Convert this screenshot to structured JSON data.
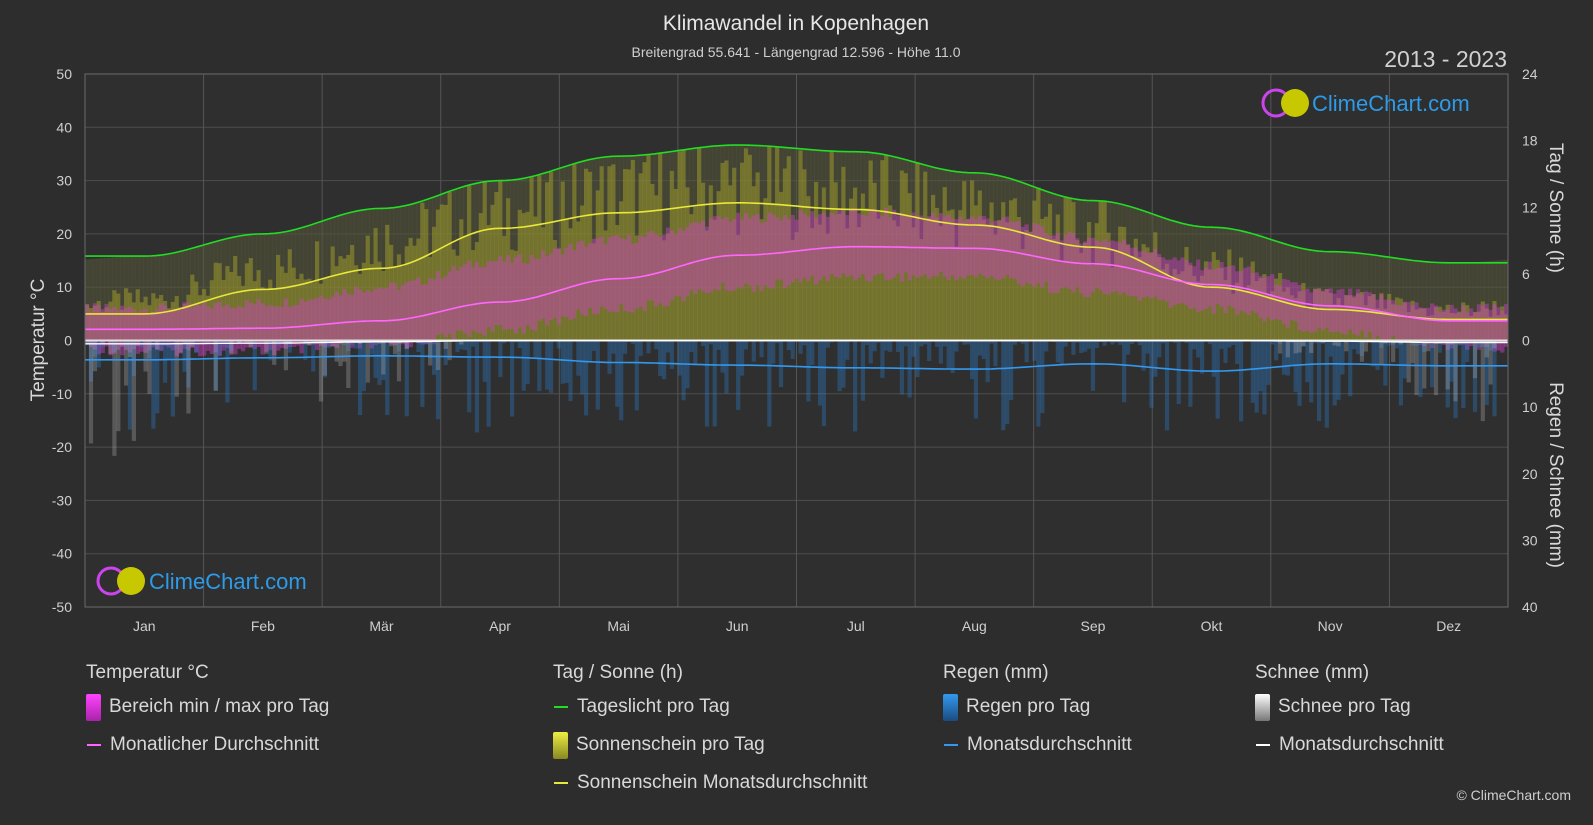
{
  "header": {
    "title": "Klimawandel in Kopenhagen",
    "subtitle": "Breitengrad 55.641 - Längengrad 12.596 - Höhe 11.0",
    "years": "2013 - 2023"
  },
  "branding": {
    "logo_text": "ClimeChart.com",
    "copyright": "© ClimeChart.com"
  },
  "axes": {
    "left_label": "Temperatur °C",
    "right_top_label": "Tag / Sonne (h)",
    "right_bottom_label": "Regen / Schnee (mm)",
    "left_ticks": [
      "50",
      "40",
      "30",
      "20",
      "10",
      "0",
      "-10",
      "-20",
      "-30",
      "-40",
      "-50"
    ],
    "right_top_ticks": [
      "24",
      "18",
      "12",
      "6",
      "0"
    ],
    "right_bottom_ticks": [
      "10",
      "20",
      "30",
      "40"
    ]
  },
  "legend": {
    "temperature": {
      "heading": "Temperatur °C",
      "range": "Bereich min / max pro Tag",
      "avg": "Monatlicher Durchschnitt"
    },
    "sun": {
      "heading": "Tag / Sonne (h)",
      "daylight": "Tageslicht pro Tag",
      "sunshine": "Sonnenschein pro Tag",
      "sunshine_avg": "Sonnenschein Monatsdurchschnitt"
    },
    "rain": {
      "heading": "Regen (mm)",
      "per_day": "Regen pro Tag",
      "avg": "Monatsdurchschnitt"
    },
    "snow": {
      "heading": "Schnee (mm)",
      "per_day": "Schnee pro Tag",
      "avg": "Monatsdurchschnitt"
    }
  },
  "colors": {
    "background": "#2d2d2d",
    "daylight": "#22dd22",
    "sunshine_avg": "#e8e83a",
    "temp_avg": "#ff66ff",
    "temp_range": "#d040c8",
    "rain": "#2a7fd0",
    "rain_avg": "#3399ee",
    "snow": "#bbbbbb",
    "snow_avg": "#ffffff",
    "logo_text": "#2d9be8"
  },
  "chart_data": {
    "type": "line",
    "categories": [
      "Jan",
      "Feb",
      "Mär",
      "Apr",
      "Mai",
      "Jun",
      "Jul",
      "Aug",
      "Sep",
      "Okt",
      "Nov",
      "Dez"
    ],
    "temp_axis": {
      "min": -50,
      "max": 50
    },
    "hours_axis": {
      "min": 0,
      "max": 24
    },
    "precip_axis": {
      "min": 0,
      "max": 40
    },
    "series": [
      {
        "name": "Tageslicht pro Tag",
        "axis": "hours",
        "values": [
          7.6,
          9.6,
          11.9,
          14.4,
          16.6,
          17.6,
          17.0,
          15.1,
          12.6,
          10.2,
          8.0,
          7.0
        ]
      },
      {
        "name": "Sonnenschein Monatsdurchschnitt",
        "axis": "hours",
        "values": [
          2.4,
          4.6,
          6.5,
          10.1,
          11.5,
          12.4,
          11.8,
          10.4,
          8.4,
          4.8,
          2.8,
          1.9
        ]
      },
      {
        "name": "Monatlicher Durchschnitt",
        "axis": "temp",
        "values": [
          2.1,
          2.3,
          3.7,
          7.2,
          11.6,
          16.0,
          17.6,
          17.3,
          14.4,
          10.5,
          6.5,
          3.7
        ]
      },
      {
        "name": "Regen Monatsdurchschnitt",
        "axis": "precip",
        "values": [
          2.9,
          2.6,
          2.3,
          2.5,
          3.3,
          3.7,
          4.1,
          4.3,
          3.5,
          4.6,
          3.5,
          3.8
        ]
      },
      {
        "name": "Schnee Monatsdurchschnitt",
        "axis": "precip",
        "values": [
          0.5,
          0.4,
          0.2,
          0.0,
          0.0,
          0.0,
          0.0,
          0.0,
          0.0,
          0.0,
          0.1,
          0.3
        ]
      }
    ],
    "temp_range_min": [
      -1,
      -1,
      0,
      3,
      7,
      11,
      13,
      13,
      10,
      7,
      3,
      0
    ],
    "temp_range_max": [
      5,
      6,
      9,
      14,
      18,
      22,
      23,
      22,
      18,
      13,
      8,
      5
    ],
    "sunshine_band": [
      4,
      7,
      10,
      13,
      14.5,
      15.5,
      14.5,
      13,
      11,
      7,
      4,
      3
    ]
  }
}
